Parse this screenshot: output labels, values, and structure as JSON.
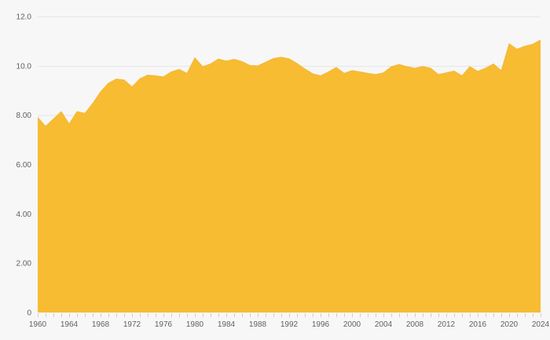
{
  "chart_data": {
    "type": "area",
    "title": "",
    "xlabel": "",
    "ylabel": "",
    "legend": "none",
    "grid": "horizontal gridlines only",
    "ylim": [
      0,
      12
    ],
    "xlim": [
      1960,
      2024
    ],
    "years": [
      1960,
      1961,
      1962,
      1963,
      1964,
      1965,
      1966,
      1967,
      1968,
      1969,
      1970,
      1971,
      1972,
      1973,
      1974,
      1975,
      1976,
      1977,
      1978,
      1979,
      1980,
      1981,
      1982,
      1983,
      1984,
      1985,
      1986,
      1987,
      1988,
      1989,
      1990,
      1991,
      1992,
      1993,
      1994,
      1995,
      1996,
      1997,
      1998,
      1999,
      2000,
      2001,
      2002,
      2003,
      2004,
      2005,
      2006,
      2007,
      2008,
      2009,
      2010,
      2011,
      2012,
      2013,
      2014,
      2015,
      2016,
      2017,
      2018,
      2019,
      2020,
      2021,
      2022,
      2023,
      2024
    ],
    "values": [
      7.92,
      7.55,
      7.85,
      8.15,
      7.65,
      8.15,
      8.08,
      8.48,
      8.95,
      9.3,
      9.47,
      9.43,
      9.15,
      9.48,
      9.63,
      9.6,
      9.56,
      9.76,
      9.86,
      9.7,
      10.33,
      9.97,
      10.08,
      10.28,
      10.2,
      10.27,
      10.18,
      10.02,
      10.0,
      10.15,
      10.3,
      10.35,
      10.29,
      10.1,
      9.88,
      9.68,
      9.6,
      9.76,
      9.94,
      9.7,
      9.81,
      9.76,
      9.7,
      9.65,
      9.72,
      9.97,
      10.06,
      9.97,
      9.91,
      9.98,
      9.91,
      9.65,
      9.72,
      9.79,
      9.6,
      9.97,
      9.78,
      9.91,
      10.08,
      9.81,
      10.9,
      10.68,
      10.8,
      10.88,
      11.05
    ],
    "ytick_values": [
      0,
      2,
      4,
      6,
      8,
      10,
      12
    ],
    "ytick_labels": [
      "0",
      "2.00",
      "4.00",
      "6.00",
      "8.00",
      "10.0",
      "12.0"
    ],
    "gridline_values": [
      2,
      4,
      6,
      8,
      10,
      12
    ],
    "xtick_label_years": [
      1960,
      1964,
      1968,
      1972,
      1976,
      1980,
      1984,
      1988,
      1992,
      1996,
      2000,
      2004,
      2008,
      2012,
      2016,
      2020,
      2024
    ],
    "minor_xticks_every_year": true,
    "colors": {
      "fill": "#F7BC31",
      "edge": "#F2AE24",
      "background": "#F7F7F7",
      "grid": "#E6E6E6",
      "tick": "#C9D0DC",
      "label": "#606060"
    }
  }
}
